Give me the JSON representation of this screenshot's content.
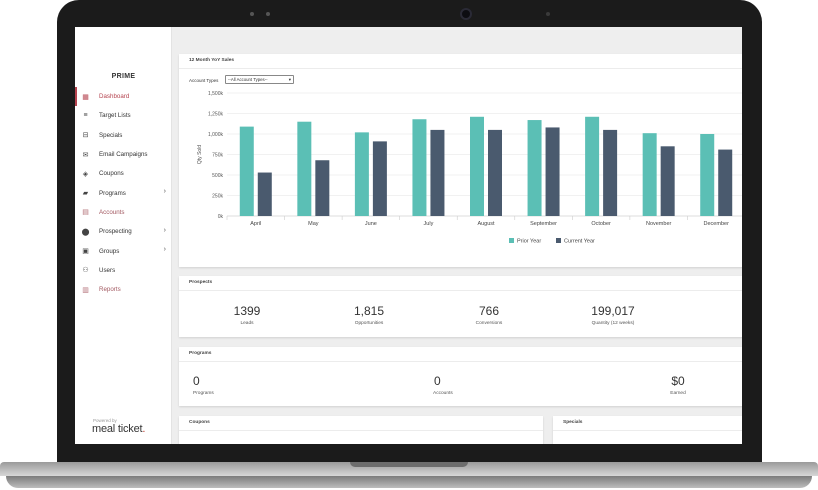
{
  "app": {
    "brand": "PRIME",
    "powered_by": "Powered by",
    "logo_meal": "meal",
    "logo_ticket": "ticket",
    "logo_dot": "."
  },
  "sidebar": {
    "items": [
      {
        "label": "Dashboard",
        "icon": "dashboard-icon",
        "state": "active"
      },
      {
        "label": "Target Lists",
        "icon": "list-icon",
        "state": "normal"
      },
      {
        "label": "Specials",
        "icon": "specials-icon",
        "state": "normal"
      },
      {
        "label": "Email Campaigns",
        "icon": "email-icon",
        "state": "normal"
      },
      {
        "label": "Coupons",
        "icon": "coupon-icon",
        "state": "normal"
      },
      {
        "label": "Programs",
        "icon": "briefcase-icon",
        "state": "normal",
        "chevron": "›"
      },
      {
        "label": "Accounts",
        "icon": "accounts-icon",
        "state": "muted"
      },
      {
        "label": "Prospecting",
        "icon": "location-pin-icon",
        "state": "normal",
        "chevron": "›"
      },
      {
        "label": "Groups",
        "icon": "groups-icon",
        "state": "normal",
        "chevron": "›"
      },
      {
        "label": "Users",
        "icon": "users-icon",
        "state": "normal"
      },
      {
        "label": "Reports",
        "icon": "bar-chart-icon",
        "state": "muted"
      }
    ]
  },
  "sales": {
    "title": "12 Month YoY Sales",
    "account_types_label": "Account Types",
    "account_types_value": "--All Account Types--"
  },
  "chart_data": {
    "type": "bar",
    "ylabel": "Qty Sold",
    "ylim": [
      0,
      1500000
    ],
    "yticks": [
      "0k",
      "250k",
      "500k",
      "750k",
      "1,000k",
      "1,250k",
      "1,500k"
    ],
    "categories": [
      "April",
      "May",
      "June",
      "July",
      "August",
      "September",
      "October",
      "November",
      "December"
    ],
    "series": [
      {
        "name": "Prior Year",
        "color": "#5bbfb5",
        "values": [
          1090000,
          1150000,
          1020000,
          1180000,
          1210000,
          1170000,
          1210000,
          1010000,
          1000000
        ]
      },
      {
        "name": "Current Year",
        "color": "#4a5a6e",
        "values": [
          530000,
          680000,
          910000,
          1050000,
          1050000,
          1080000,
          1050000,
          850000,
          810000
        ]
      }
    ],
    "legend": "bottom-center",
    "grid": true
  },
  "prospects": {
    "title": "Prospects",
    "kpis": [
      {
        "value": "1399",
        "label": "Leads"
      },
      {
        "value": "1,815",
        "label": "Opportunities"
      },
      {
        "value": "766",
        "label": "Conversions"
      },
      {
        "value": "199,017",
        "label": "Quantity (12 weeks)"
      }
    ]
  },
  "programs": {
    "title": "Programs",
    "kpis": [
      {
        "value": "0",
        "label": "Programs"
      },
      {
        "value": "0",
        "label": "Accounts"
      },
      {
        "value": "$0",
        "label": "Earned"
      }
    ]
  },
  "coupons": {
    "title": "Coupons"
  },
  "specials": {
    "title": "Specials"
  }
}
